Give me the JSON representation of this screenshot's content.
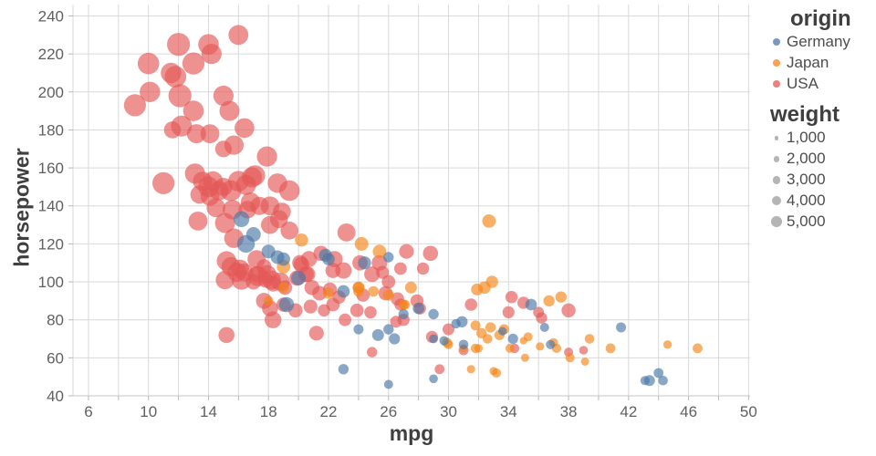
{
  "chart_data": {
    "type": "scatter",
    "title": "",
    "xlabel": "mpg",
    "ylabel": "horsepower",
    "x_domain": [
      4.97,
      50.1
    ],
    "y_domain": [
      40,
      246
    ],
    "x_label_ticks": [
      6,
      10,
      14,
      18,
      22,
      26,
      30,
      34,
      38,
      42,
      46,
      50
    ],
    "x_grid_min": 6,
    "x_grid_max": 50,
    "x_grid_step": 2,
    "y_ticks": [
      40,
      60,
      80,
      100,
      120,
      140,
      160,
      180,
      200,
      220,
      240
    ],
    "grid": true,
    "legend_position": "right",
    "point_opacity": 0.65,
    "colors": {
      "Germany": "#4c78a8",
      "Japan": "#f58518",
      "USA": "#e45756"
    },
    "origin_codes": {
      "U": "USA",
      "J": "Japan",
      "G": "Germany"
    },
    "point_format": [
      "mpg",
      "horsepower",
      "weight",
      "origin"
    ],
    "points": [
      [
        16,
        230,
        4278,
        "U"
      ],
      [
        12,
        225,
        4951,
        "U"
      ],
      [
        14,
        225,
        4425,
        "U"
      ],
      [
        14.2,
        220,
        4354,
        "U"
      ],
      [
        10,
        215,
        4615,
        "U"
      ],
      [
        13,
        215,
        4735,
        "U"
      ],
      [
        11.5,
        210,
        4382,
        "U"
      ],
      [
        11.8,
        208,
        4633,
        "U"
      ],
      [
        10.1,
        200,
        4376,
        "U"
      ],
      [
        12.1,
        198,
        4952,
        "U"
      ],
      [
        15,
        198,
        4341,
        "U"
      ],
      [
        9.1,
        193,
        4732,
        "U"
      ],
      [
        13,
        190,
        4422,
        "U"
      ],
      [
        15.4,
        190,
        4325,
        "U"
      ],
      [
        11.6,
        180,
        3664,
        "U"
      ],
      [
        12.2,
        182,
        4499,
        "U"
      ],
      [
        13.2,
        178,
        4100,
        "U"
      ],
      [
        14.1,
        178,
        4080,
        "U"
      ],
      [
        16.4,
        181,
        4220,
        "U"
      ],
      [
        15,
        170,
        3563,
        "U"
      ],
      [
        15.7,
        172,
        4165,
        "U"
      ],
      [
        17.9,
        166,
        4335,
        "U"
      ],
      [
        13.1,
        157,
        4363,
        "U"
      ],
      [
        13.6,
        153,
        4129,
        "U"
      ],
      [
        14.3,
        153,
        4257,
        "U"
      ],
      [
        16,
        153,
        4440,
        "U"
      ],
      [
        14.7,
        148,
        4141,
        "U"
      ],
      [
        14.1,
        145,
        4055,
        "U"
      ],
      [
        15.5,
        148,
        4457,
        "U"
      ],
      [
        16.5,
        151,
        4363,
        "U"
      ],
      [
        13.4,
        146,
        3940,
        "U"
      ],
      [
        14,
        150,
        4464,
        "U"
      ],
      [
        15,
        150,
        3892,
        "U"
      ],
      [
        16.8,
        142,
        4141,
        "U"
      ],
      [
        18.1,
        140,
        4054,
        "U"
      ],
      [
        19.4,
        148,
        4425,
        "U"
      ],
      [
        16.9,
        155,
        4360,
        "U"
      ],
      [
        18.6,
        152,
        4195,
        "U"
      ],
      [
        17.1,
        156,
        4380,
        "U"
      ],
      [
        11,
        152,
        4746,
        "U"
      ],
      [
        15.1,
        131,
        4295,
        "U"
      ],
      [
        13.3,
        132,
        4098,
        "U"
      ],
      [
        15.7,
        123,
        4190,
        "U"
      ],
      [
        18.1,
        130,
        3870,
        "U"
      ],
      [
        18.7,
        133,
        3850,
        "U"
      ],
      [
        19.4,
        127,
        3850,
        "U"
      ],
      [
        15.2,
        111,
        4190,
        "U"
      ],
      [
        16.1,
        107,
        3897,
        "U"
      ],
      [
        17.2,
        112,
        3900,
        "U"
      ],
      [
        15.1,
        101,
        3988,
        "U"
      ],
      [
        15.9,
        105,
        4135,
        "U"
      ],
      [
        16.2,
        101,
        4190,
        "U"
      ],
      [
        17.3,
        103,
        4295,
        "U"
      ],
      [
        17.9,
        104,
        3962,
        "U"
      ],
      [
        18.2,
        101,
        4135,
        "U"
      ],
      [
        18.8,
        100,
        3955,
        "U"
      ],
      [
        17.7,
        90,
        3445,
        "U"
      ],
      [
        18.1,
        86,
        3439,
        "U"
      ],
      [
        18.3,
        80,
        3609,
        "U"
      ],
      [
        15.2,
        72,
        3432,
        "U"
      ],
      [
        14.5,
        139,
        4055,
        "U"
      ],
      [
        15.6,
        138,
        4190,
        "U"
      ],
      [
        16.6,
        138,
        3755,
        "U"
      ],
      [
        17.4,
        140,
        3930,
        "U"
      ],
      [
        18.9,
        137,
        3830,
        "U"
      ],
      [
        23.2,
        126,
        3885,
        "U"
      ],
      [
        27.2,
        116,
        3190,
        "U"
      ],
      [
        28.8,
        115,
        3245,
        "U"
      ],
      [
        20.7,
        112,
        3432,
        "U"
      ],
      [
        22.4,
        112,
        3485,
        "U"
      ],
      [
        24.1,
        110,
        3278,
        "U"
      ],
      [
        25.4,
        110,
        3365,
        "U"
      ],
      [
        26.8,
        107,
        2700,
        "U"
      ],
      [
        28.3,
        107,
        2640,
        "U"
      ],
      [
        20.2,
        109,
        3425,
        "U"
      ],
      [
        20.6,
        104,
        3380,
        "U"
      ],
      [
        31.5,
        88,
        2670,
        "U"
      ],
      [
        34,
        84,
        2595,
        "U"
      ],
      [
        35,
        89,
        2620,
        "U"
      ],
      [
        34.2,
        92,
        2640,
        "U"
      ],
      [
        24.9,
        63,
        2225,
        "U"
      ],
      [
        21.2,
        73,
        3158,
        "U"
      ],
      [
        23.1,
        80,
        2720,
        "U"
      ],
      [
        29.4,
        54,
        2110,
        "U"
      ],
      [
        17.7,
        108,
        3169,
        "U"
      ],
      [
        20.1,
        110,
        3380,
        "U"
      ],
      [
        21.5,
        115,
        3245,
        "U"
      ],
      [
        22.3,
        106,
        3250,
        "U"
      ],
      [
        23,
        106,
        3525,
        "U"
      ],
      [
        24.9,
        104,
        3365,
        "U"
      ],
      [
        25.6,
        105,
        2789,
        "U"
      ],
      [
        26,
        100,
        2905,
        "U"
      ],
      [
        17.2,
        104,
        3433,
        "U"
      ],
      [
        17.8,
        101,
        3288,
        "U"
      ],
      [
        18.3,
        99,
        3365,
        "U"
      ],
      [
        19.9,
        102,
        3289,
        "U"
      ],
      [
        20.5,
        104,
        3365,
        "U"
      ],
      [
        20.9,
        97,
        3270,
        "U"
      ],
      [
        21.4,
        94,
        3155,
        "U"
      ],
      [
        22.1,
        96,
        2963,
        "U"
      ],
      [
        22.7,
        92,
        2875,
        "U"
      ],
      [
        24.3,
        93,
        2875,
        "U"
      ],
      [
        25.8,
        94,
        3021,
        "U"
      ],
      [
        26.6,
        91,
        2875,
        "U"
      ],
      [
        27.9,
        90,
        2807,
        "U"
      ],
      [
        19,
        88,
        3021,
        "U"
      ],
      [
        19.8,
        85,
        3070,
        "U"
      ],
      [
        20.8,
        87,
        2979,
        "U"
      ],
      [
        21.7,
        85,
        2670,
        "U"
      ],
      [
        22.3,
        88,
        2890,
        "U"
      ],
      [
        23.9,
        85,
        2905,
        "U"
      ],
      [
        24.8,
        84,
        2670,
        "U"
      ],
      [
        26.8,
        88,
        2605,
        "U"
      ],
      [
        28.1,
        86,
        2605,
        "U"
      ],
      [
        26.5,
        79,
        2565,
        "U"
      ],
      [
        27,
        80,
        2625,
        "U"
      ],
      [
        36,
        84,
        2370,
        "U"
      ],
      [
        36.2,
        81,
        2440,
        "U"
      ],
      [
        38,
        85,
        3015,
        "U"
      ],
      [
        38,
        63,
        1980,
        "U"
      ],
      [
        39,
        64,
        1875,
        "U"
      ],
      [
        31,
        64,
        2155,
        "U"
      ],
      [
        15.5,
        108,
        4077,
        "U"
      ],
      [
        16.4,
        105,
        3897,
        "U"
      ],
      [
        17,
        100,
        3329,
        "U"
      ],
      [
        19.1,
        97,
        3102,
        "U"
      ],
      [
        28.9,
        71,
        2575,
        "U"
      ],
      [
        30,
        75,
        2542,
        "U"
      ],
      [
        34.4,
        65,
        2045,
        "U"
      ],
      [
        32.7,
        132,
        2910,
        "J"
      ],
      [
        20.2,
        122,
        2807,
        "J"
      ],
      [
        24.2,
        120,
        2930,
        "J"
      ],
      [
        25.4,
        116,
        2905,
        "J"
      ],
      [
        19,
        97,
        2330,
        "J"
      ],
      [
        18,
        90,
        2124,
        "J"
      ],
      [
        19,
        108,
        2890,
        "J"
      ],
      [
        22,
        94,
        2379,
        "J"
      ],
      [
        24,
        97,
        2545,
        "J"
      ],
      [
        24,
        95,
        2278,
        "J"
      ],
      [
        25,
        95,
        2265,
        "J"
      ],
      [
        27.5,
        97,
        2560,
        "J"
      ],
      [
        24,
        97,
        2489,
        "J"
      ],
      [
        26,
        93,
        2391,
        "J"
      ],
      [
        27,
        88,
        2130,
        "J"
      ],
      [
        27.1,
        88,
        2130,
        "J"
      ],
      [
        32.9,
        100,
        2615,
        "J"
      ],
      [
        32.4,
        97,
        2665,
        "J"
      ],
      [
        31.9,
        96,
        2556,
        "J"
      ],
      [
        29.9,
        68,
        2135,
        "J"
      ],
      [
        31.8,
        77,
        2155,
        "J"
      ],
      [
        32.2,
        73,
        2245,
        "J"
      ],
      [
        32.8,
        76,
        2190,
        "J"
      ],
      [
        33.4,
        72,
        2210,
        "J"
      ],
      [
        34.1,
        65,
        1975,
        "J"
      ],
      [
        33.7,
        75,
        2210,
        "J"
      ],
      [
        31.8,
        65,
        2020,
        "J"
      ],
      [
        32.6,
        70,
        2065,
        "J"
      ],
      [
        31.5,
        54,
        1795,
        "J"
      ],
      [
        33,
        53,
        1760,
        "J"
      ],
      [
        33.2,
        52,
        1985,
        "J"
      ],
      [
        35,
        69,
        1613,
        "J"
      ],
      [
        36.1,
        66,
        1800,
        "J"
      ],
      [
        37,
        68,
        1975,
        "J"
      ],
      [
        37.2,
        65,
        2019,
        "J"
      ],
      [
        38.1,
        60,
        1968,
        "J"
      ],
      [
        35.1,
        60,
        1760,
        "J"
      ],
      [
        39.1,
        58,
        1755,
        "J"
      ],
      [
        39.4,
        70,
        2070,
        "J"
      ],
      [
        40.8,
        65,
        2110,
        "J"
      ],
      [
        44.6,
        67,
        1850,
        "J"
      ],
      [
        46.6,
        65,
        2110,
        "J"
      ],
      [
        37.5,
        92,
        2434,
        "J"
      ],
      [
        36.7,
        90,
        2420,
        "J"
      ],
      [
        30,
        67,
        1985,
        "J"
      ],
      [
        31,
        65,
        1773,
        "J"
      ],
      [
        32,
        65,
        1836,
        "J"
      ],
      [
        35.3,
        71,
        1955,
        "J"
      ],
      [
        16.2,
        133,
        3410,
        "G"
      ],
      [
        17,
        125,
        3140,
        "G"
      ],
      [
        16.5,
        120,
        3820,
        "G"
      ],
      [
        18,
        116,
        2945,
        "G"
      ],
      [
        19,
        112,
        2868,
        "G"
      ],
      [
        18.6,
        113,
        2933,
        "G"
      ],
      [
        19.2,
        88,
        3270,
        "G"
      ],
      [
        20,
        102,
        3150,
        "G"
      ],
      [
        21.8,
        114,
        2800,
        "G"
      ],
      [
        22,
        112,
        2671,
        "G"
      ],
      [
        24.4,
        110,
        2795,
        "G"
      ],
      [
        26,
        113,
        2234,
        "G"
      ],
      [
        23,
        95,
        2694,
        "G"
      ],
      [
        24,
        75,
        2158,
        "G"
      ],
      [
        26,
        75,
        2246,
        "G"
      ],
      [
        27,
        83,
        2202,
        "G"
      ],
      [
        28,
        86,
        2464,
        "G"
      ],
      [
        29,
        83,
        2219,
        "G"
      ],
      [
        29,
        70,
        1937,
        "G"
      ],
      [
        30.5,
        78,
        2051,
        "G"
      ],
      [
        31,
        67,
        2065,
        "G"
      ],
      [
        25.3,
        72,
        2565,
        "G"
      ],
      [
        26.4,
        70,
        2391,
        "G"
      ],
      [
        23,
        54,
        2254,
        "G"
      ],
      [
        26,
        46,
        1950,
        "G"
      ],
      [
        29,
        49,
        1867,
        "G"
      ],
      [
        30.9,
        79,
        2420,
        "G"
      ],
      [
        33.6,
        74,
        1825,
        "G"
      ],
      [
        34.3,
        70,
        2190,
        "G"
      ],
      [
        35.5,
        88,
        2515,
        "G"
      ],
      [
        36.4,
        76,
        1980,
        "G"
      ],
      [
        36.8,
        67,
        1990,
        "G"
      ],
      [
        41.5,
        76,
        2144,
        "G"
      ],
      [
        43.1,
        48,
        1985,
        "G"
      ],
      [
        43.4,
        48,
        2335,
        "G"
      ],
      [
        44.3,
        48,
        2085,
        "G"
      ],
      [
        44,
        52,
        2130,
        "G"
      ],
      [
        29.7,
        69,
        1990,
        "G"
      ]
    ]
  },
  "axes": {
    "x_title": "mpg",
    "y_title": "horsepower"
  },
  "legend": {
    "origin_title": "origin",
    "origin_items": [
      {
        "label": "Germany",
        "color": "#4c78a8"
      },
      {
        "label": "Japan",
        "color": "#f58518"
      },
      {
        "label": "USA",
        "color": "#e45756"
      }
    ],
    "weight_title": "weight",
    "weight_items": [
      {
        "label": "1,000",
        "value": 1000
      },
      {
        "label": "2,000",
        "value": 2000
      },
      {
        "label": "3,000",
        "value": 3000
      },
      {
        "label": "4,000",
        "value": 4000
      },
      {
        "label": "5,000",
        "value": 5000
      }
    ],
    "weight_swatch_color": "#b5b5b5"
  }
}
